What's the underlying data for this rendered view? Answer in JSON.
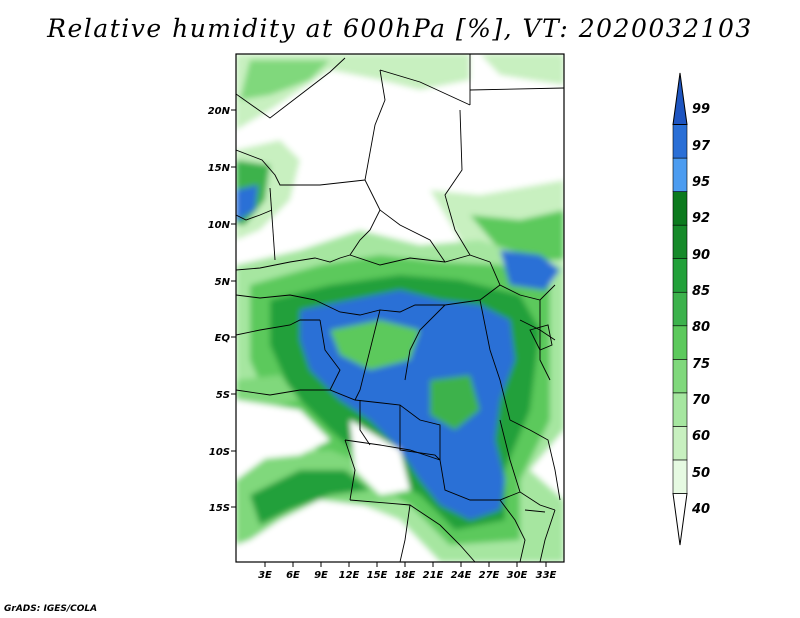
{
  "title": "Relative humidity at 600hPa [%], VT: 2020032103",
  "footer": "GrADS: IGES/COLA",
  "map": {
    "variable": "Relative humidity",
    "level": "600hPa",
    "units": "%",
    "valid_time": "2020032103",
    "lat_ticks": [
      "20N",
      "15N",
      "10N",
      "5N",
      "EQ",
      "5S",
      "10S",
      "15S"
    ],
    "lon_ticks": [
      "3E",
      "6E",
      "9E",
      "12E",
      "15E",
      "18E",
      "21E",
      "24E",
      "27E",
      "30E",
      "33E"
    ]
  },
  "legend": {
    "levels": [
      "40",
      "50",
      "60",
      "70",
      "75",
      "80",
      "85",
      "90",
      "92",
      "95",
      "97",
      "99"
    ],
    "colors": [
      "#ffffff",
      "#e6fae2",
      "#c8f0c0",
      "#a6e6a0",
      "#80d87c",
      "#5cc95c",
      "#3cb24c",
      "#22a03a",
      "#168a2a",
      "#0c7a1e",
      "#4c9cf0",
      "#2a6fd6",
      "#1e55c0"
    ]
  }
}
